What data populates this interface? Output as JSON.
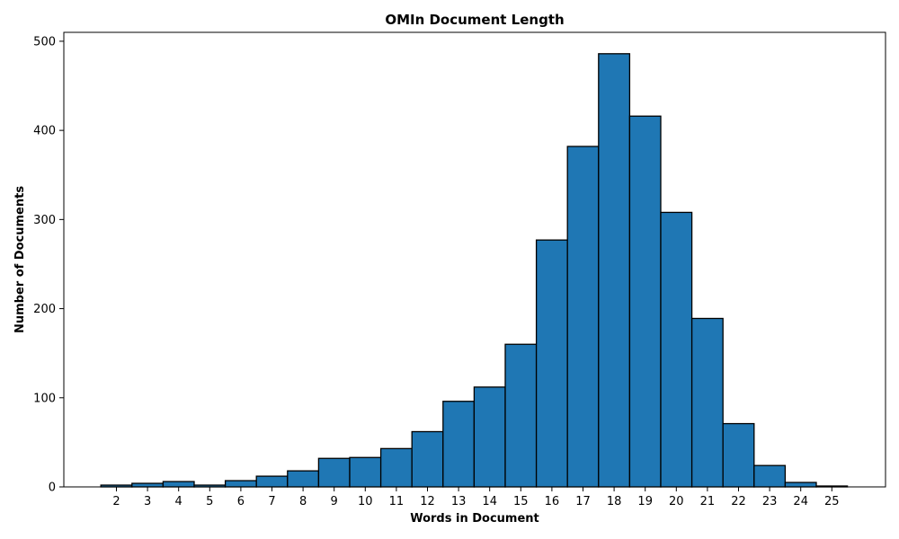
{
  "chart_data": {
    "type": "bar",
    "title": "OMIn Document Length",
    "xlabel": "Words in Document",
    "ylabel": "Number of Documents",
    "categories": [
      "2",
      "3",
      "4",
      "5",
      "6",
      "7",
      "8",
      "9",
      "10",
      "11",
      "12",
      "13",
      "14",
      "15",
      "16",
      "17",
      "18",
      "19",
      "20",
      "21",
      "22",
      "23",
      "24",
      "25"
    ],
    "values": [
      2,
      4,
      6,
      2,
      7,
      12,
      18,
      32,
      33,
      43,
      62,
      96,
      112,
      160,
      277,
      382,
      486,
      416,
      308,
      189,
      71,
      24,
      5,
      1
    ],
    "ylim": [
      0,
      510
    ],
    "yticks": [
      0,
      100,
      200,
      300,
      400,
      500
    ],
    "grid": false,
    "colors": {
      "bar_fill": "#1f77b4",
      "bar_edge": "#000000"
    }
  }
}
